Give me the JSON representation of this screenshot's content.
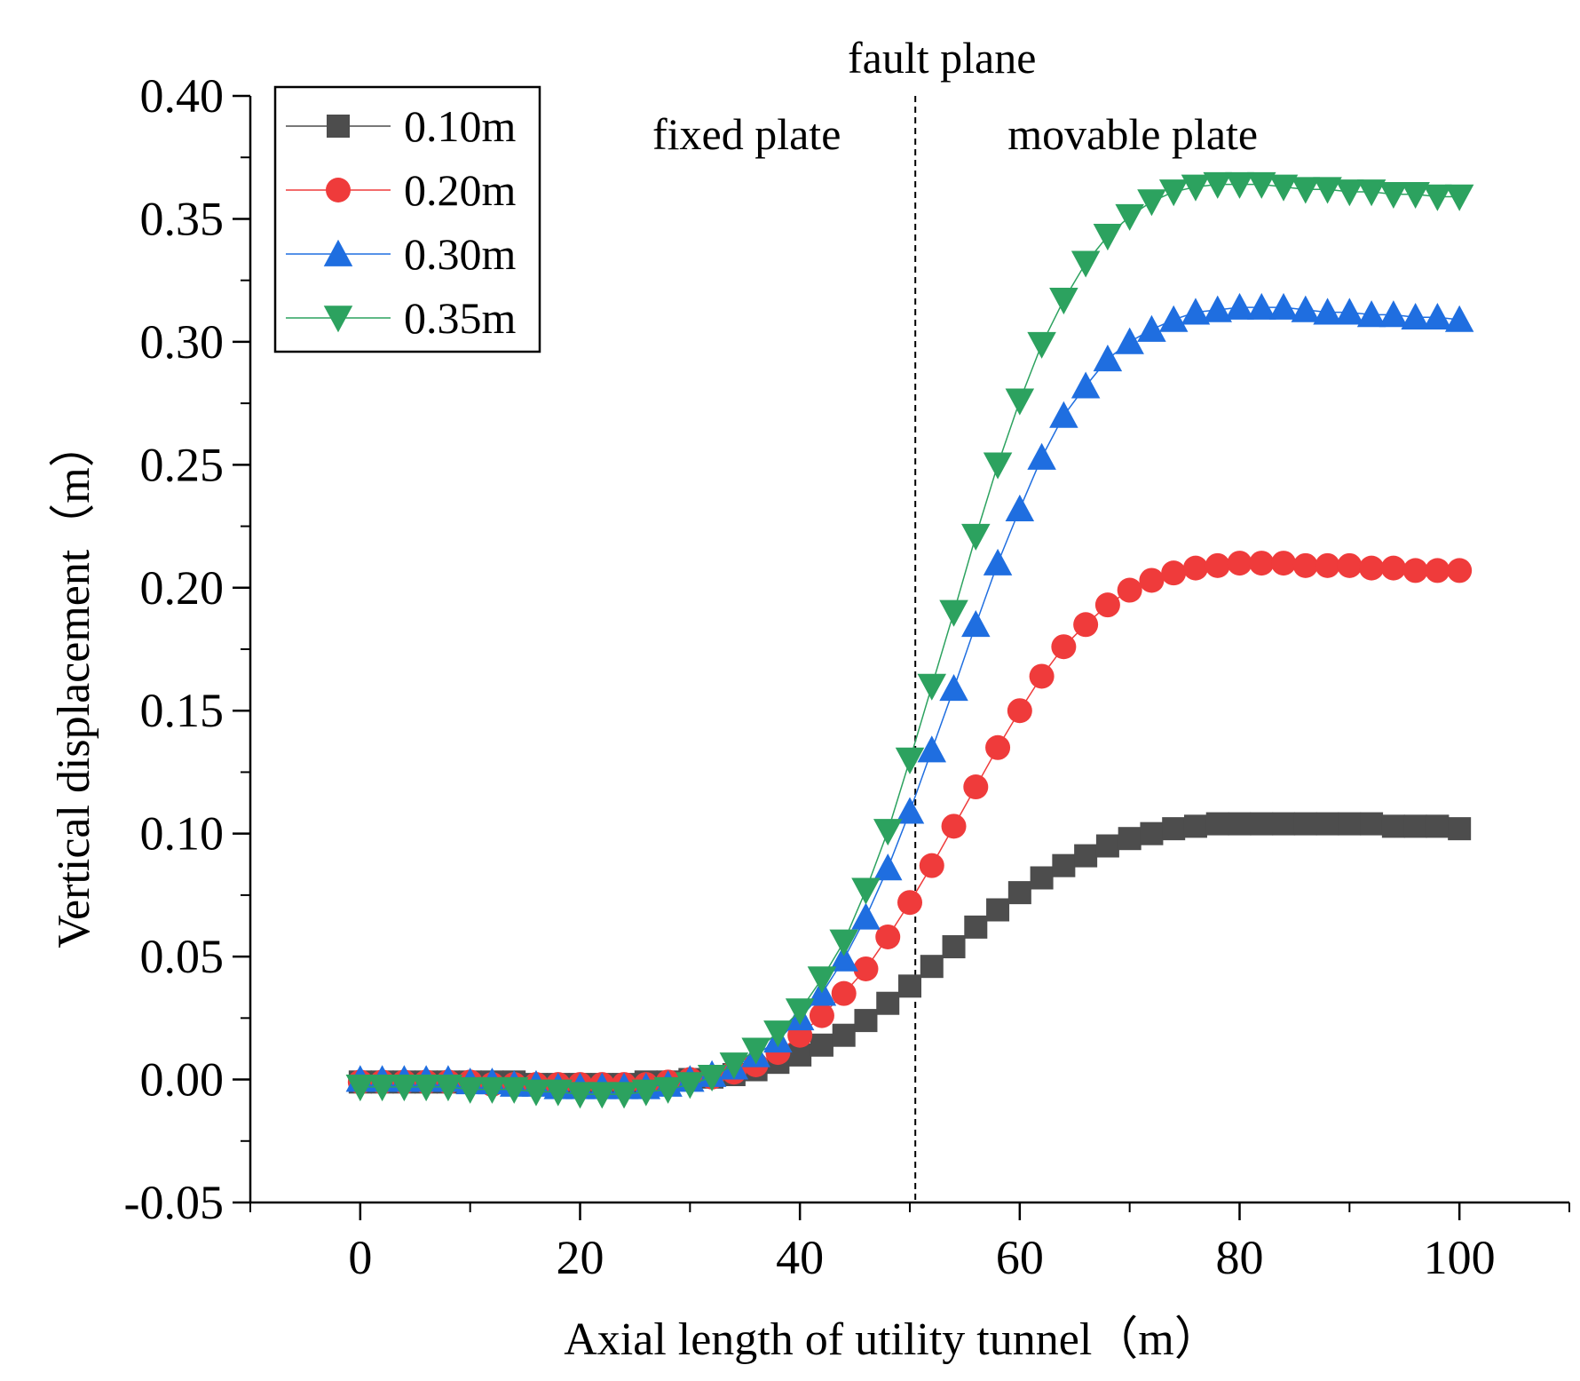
{
  "chart_data": {
    "type": "line",
    "title": "",
    "xlabel": "Axial length of utility tunnel（m）",
    "ylabel": "Vertical displacement（m）",
    "xlim": [
      -10,
      110
    ],
    "ylim": [
      -0.05,
      0.4
    ],
    "x_ticks": [
      0,
      20,
      40,
      60,
      80,
      100
    ],
    "x_tick_labels": [
      "0",
      "20",
      "40",
      "60",
      "80",
      "100"
    ],
    "y_ticks": [
      -0.05,
      0.0,
      0.05,
      0.1,
      0.15,
      0.2,
      0.25,
      0.3,
      0.35,
      0.4
    ],
    "y_tick_labels": [
      "-0.05",
      "0.00",
      "0.05",
      "0.10",
      "0.15",
      "0.20",
      "0.25",
      "0.30",
      "0.35",
      "0.40"
    ],
    "grid": false,
    "legend_position": "top-left",
    "annotations": [
      {
        "text": "fault plane",
        "x": 50.5
      },
      {
        "text": "fixed plate"
      },
      {
        "text": "movable plate"
      }
    ],
    "fault_x": 50.5,
    "x": [
      0,
      2,
      4,
      6,
      8,
      10,
      12,
      14,
      16,
      18,
      20,
      22,
      24,
      26,
      28,
      30,
      32,
      34,
      36,
      38,
      40,
      42,
      44,
      46,
      48,
      50,
      52,
      54,
      56,
      58,
      60,
      62,
      64,
      66,
      68,
      70,
      72,
      74,
      76,
      78,
      80,
      82,
      84,
      86,
      88,
      90,
      92,
      94,
      96,
      98,
      100
    ],
    "series": [
      {
        "name": "0.10m",
        "color": "#4d4d4d",
        "marker": "square",
        "values": [
          -0.001,
          -0.001,
          -0.001,
          -0.001,
          -0.001,
          -0.001,
          -0.001,
          -0.001,
          -0.002,
          -0.002,
          -0.002,
          -0.002,
          -0.002,
          -0.001,
          -0.001,
          0.0,
          0.001,
          0.002,
          0.004,
          0.007,
          0.01,
          0.014,
          0.018,
          0.024,
          0.031,
          0.038,
          0.046,
          0.054,
          0.062,
          0.069,
          0.076,
          0.082,
          0.087,
          0.091,
          0.095,
          0.098,
          0.1,
          0.102,
          0.103,
          0.104,
          0.104,
          0.104,
          0.104,
          0.104,
          0.104,
          0.104,
          0.104,
          0.103,
          0.103,
          0.103,
          0.102
        ]
      },
      {
        "name": "0.20m",
        "color": "#ef3b3b",
        "marker": "circle",
        "values": [
          -0.001,
          -0.001,
          -0.001,
          -0.001,
          -0.001,
          -0.001,
          -0.002,
          -0.002,
          -0.002,
          -0.002,
          -0.002,
          -0.002,
          -0.002,
          -0.002,
          -0.001,
          0.0,
          0.001,
          0.003,
          0.006,
          0.011,
          0.018,
          0.026,
          0.035,
          0.045,
          0.058,
          0.072,
          0.087,
          0.103,
          0.119,
          0.135,
          0.15,
          0.164,
          0.176,
          0.185,
          0.193,
          0.199,
          0.203,
          0.206,
          0.208,
          0.209,
          0.21,
          0.21,
          0.21,
          0.209,
          0.209,
          0.209,
          0.208,
          0.208,
          0.207,
          0.207,
          0.207
        ]
      },
      {
        "name": "0.30m",
        "color": "#1f6ee0",
        "marker": "triangle-up",
        "values": [
          0.0,
          0.0,
          0.0,
          0.0,
          0.0,
          -0.001,
          -0.001,
          -0.002,
          -0.002,
          -0.003,
          -0.003,
          -0.003,
          -0.003,
          -0.003,
          -0.002,
          0.0,
          0.002,
          0.005,
          0.01,
          0.016,
          0.025,
          0.035,
          0.049,
          0.066,
          0.086,
          0.109,
          0.134,
          0.159,
          0.185,
          0.21,
          0.232,
          0.253,
          0.27,
          0.282,
          0.293,
          0.3,
          0.305,
          0.309,
          0.312,
          0.313,
          0.314,
          0.314,
          0.314,
          0.313,
          0.312,
          0.312,
          0.311,
          0.311,
          0.31,
          0.31,
          0.309
        ]
      },
      {
        "name": "0.35m",
        "color": "#2ca25f",
        "marker": "triangle-down",
        "values": [
          -0.003,
          -0.003,
          -0.003,
          -0.003,
          -0.003,
          -0.004,
          -0.004,
          -0.004,
          -0.005,
          -0.005,
          -0.006,
          -0.006,
          -0.006,
          -0.005,
          -0.004,
          -0.002,
          0.001,
          0.006,
          0.012,
          0.019,
          0.028,
          0.041,
          0.056,
          0.077,
          0.101,
          0.13,
          0.16,
          0.19,
          0.221,
          0.25,
          0.276,
          0.299,
          0.317,
          0.332,
          0.343,
          0.351,
          0.357,
          0.361,
          0.363,
          0.364,
          0.364,
          0.364,
          0.363,
          0.362,
          0.362,
          0.361,
          0.361,
          0.36,
          0.36,
          0.359,
          0.359
        ]
      }
    ]
  }
}
